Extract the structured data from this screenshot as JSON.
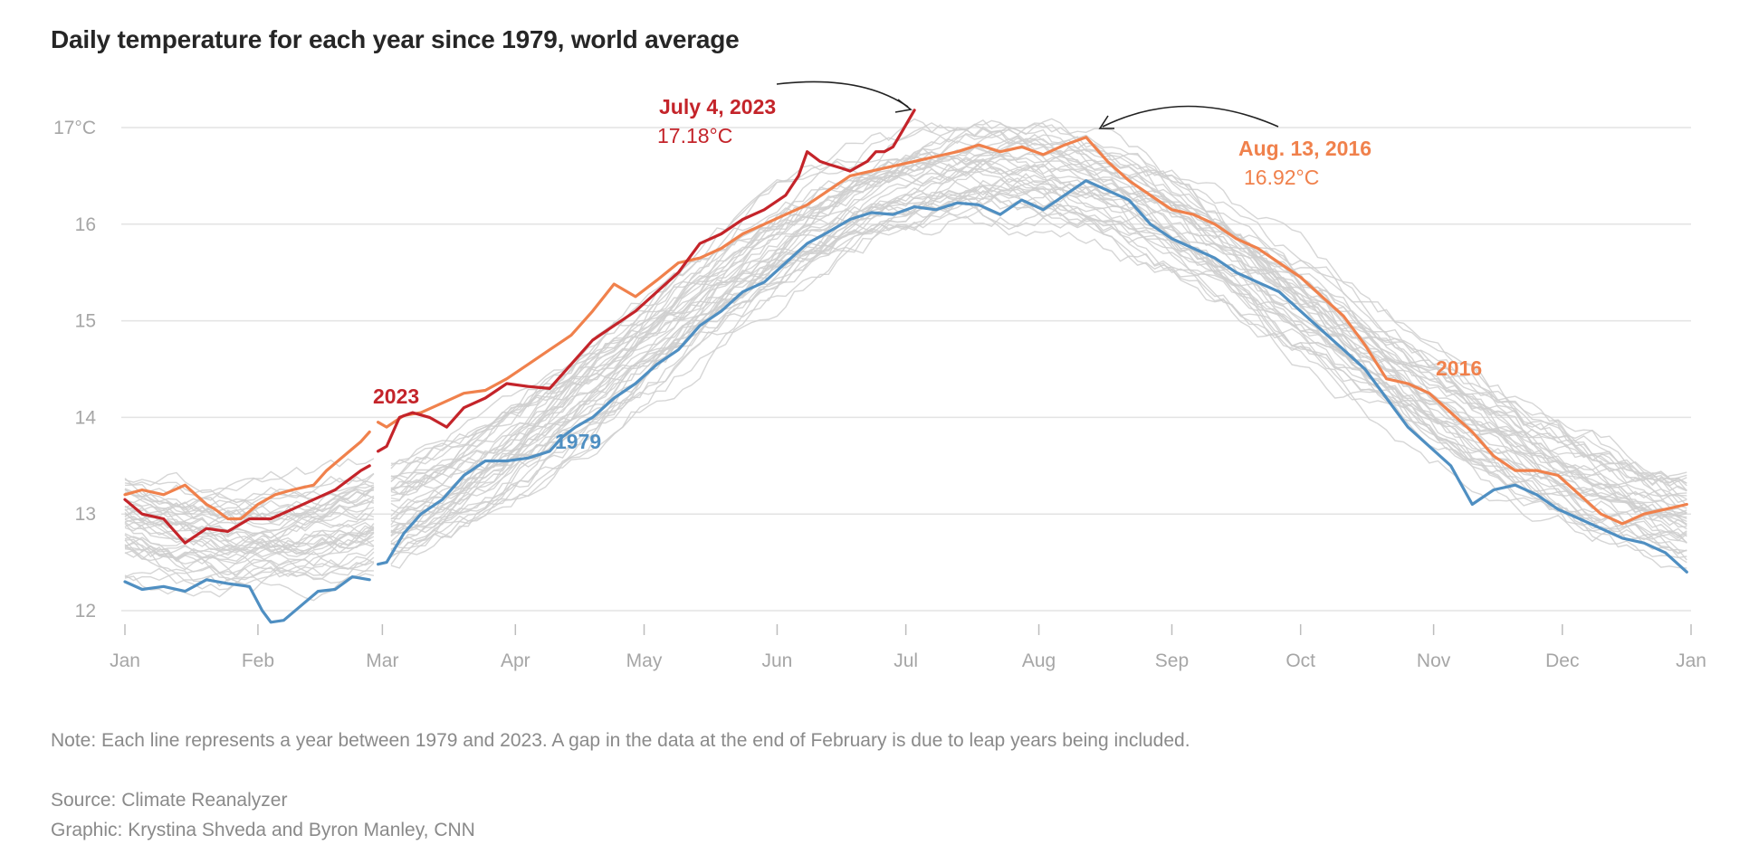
{
  "title": "Daily temperature for each year since 1979, world average",
  "chart_data": {
    "type": "line",
    "title": "Daily temperature for each year since 1979, world average",
    "xlabel": "",
    "ylabel": "",
    "x_range": [
      1,
      366
    ],
    "ylim": [
      12,
      17.3
    ],
    "y_ticks": [
      12,
      13,
      14,
      15,
      16,
      17
    ],
    "y_tick_labels": [
      "12",
      "13",
      "14",
      "15",
      "16",
      "17°C"
    ],
    "x_ticks": [
      {
        "day": 1,
        "label": "Jan"
      },
      {
        "day": 32,
        "label": "Feb"
      },
      {
        "day": 61,
        "label": "Mar"
      },
      {
        "day": 92,
        "label": "Apr"
      },
      {
        "day": 122,
        "label": "May"
      },
      {
        "day": 153,
        "label": "Jun"
      },
      {
        "day": 183,
        "label": "Jul"
      },
      {
        "day": 214,
        "label": "Aug"
      },
      {
        "day": 245,
        "label": "Sep"
      },
      {
        "day": 275,
        "label": "Oct"
      },
      {
        "day": 306,
        "label": "Nov"
      },
      {
        "day": 336,
        "label": "Dec"
      },
      {
        "day": 366,
        "label": "Jan"
      }
    ],
    "grid": true,
    "background_series_count": 42,
    "background_color": "#cfcfcf",
    "leap_gap_after_day": 59,
    "series": [
      {
        "name": "1979",
        "color": "#4f8fc2",
        "x": [
          1,
          5,
          10,
          15,
          20,
          25,
          30,
          33,
          35,
          38,
          42,
          46,
          50,
          54,
          58,
          60,
          62,
          66,
          70,
          75,
          80,
          85,
          90,
          95,
          100,
          103,
          106,
          110,
          115,
          120,
          125,
          130,
          135,
          140,
          145,
          150,
          155,
          160,
          165,
          170,
          175,
          180,
          185,
          190,
          195,
          200,
          205,
          210,
          215,
          220,
          225,
          230,
          235,
          240,
          245,
          250,
          255,
          260,
          265,
          270,
          275,
          280,
          285,
          290,
          295,
          300,
          305,
          310,
          315,
          320,
          325,
          330,
          335,
          340,
          345,
          350,
          355,
          360,
          365
        ],
        "values": [
          12.3,
          12.22,
          12.25,
          12.2,
          12.32,
          12.28,
          12.25,
          12.0,
          11.88,
          11.9,
          12.05,
          12.2,
          12.22,
          12.35,
          12.32,
          12.48,
          12.5,
          12.8,
          13.0,
          13.15,
          13.4,
          13.55,
          13.55,
          13.58,
          13.65,
          13.8,
          13.9,
          14.0,
          14.2,
          14.35,
          14.55,
          14.7,
          14.95,
          15.1,
          15.3,
          15.4,
          15.6,
          15.8,
          15.92,
          16.05,
          16.12,
          16.1,
          16.18,
          16.15,
          16.22,
          16.2,
          16.1,
          16.25,
          16.15,
          16.3,
          16.45,
          16.35,
          16.25,
          16.0,
          15.85,
          15.75,
          15.65,
          15.5,
          15.4,
          15.3,
          15.1,
          14.9,
          14.7,
          14.5,
          14.2,
          13.9,
          13.7,
          13.5,
          13.1,
          13.25,
          13.3,
          13.2,
          13.05,
          12.95,
          12.85,
          12.75,
          12.7,
          12.6,
          12.4
        ]
      },
      {
        "name": "2016",
        "color": "#f0814c",
        "x": [
          1,
          5,
          10,
          15,
          20,
          22,
          25,
          28,
          32,
          36,
          40,
          45,
          48,
          52,
          56,
          58,
          60,
          62,
          66,
          70,
          75,
          80,
          85,
          90,
          95,
          100,
          105,
          110,
          115,
          120,
          125,
          130,
          135,
          140,
          145,
          150,
          155,
          160,
          165,
          170,
          175,
          180,
          185,
          190,
          195,
          200,
          205,
          210,
          215,
          220,
          225,
          230,
          235,
          240,
          245,
          250,
          255,
          260,
          265,
          270,
          275,
          280,
          285,
          290,
          295,
          300,
          305,
          310,
          315,
          320,
          325,
          330,
          335,
          340,
          345,
          350,
          355,
          360,
          365
        ],
        "values": [
          13.2,
          13.25,
          13.2,
          13.3,
          13.1,
          13.05,
          12.95,
          12.95,
          13.1,
          13.2,
          13.25,
          13.3,
          13.45,
          13.6,
          13.75,
          13.85,
          13.95,
          13.9,
          14.02,
          14.05,
          14.15,
          14.25,
          14.28,
          14.4,
          14.55,
          14.7,
          14.85,
          15.1,
          15.38,
          15.25,
          15.42,
          15.6,
          15.65,
          15.75,
          15.9,
          16.0,
          16.1,
          16.2,
          16.35,
          16.5,
          16.55,
          16.6,
          16.65,
          16.7,
          16.75,
          16.82,
          16.75,
          16.8,
          16.72,
          16.82,
          16.9,
          16.65,
          16.45,
          16.3,
          16.15,
          16.1,
          16.0,
          15.85,
          15.75,
          15.6,
          15.45,
          15.25,
          15.05,
          14.75,
          14.4,
          14.35,
          14.25,
          14.05,
          13.85,
          13.6,
          13.45,
          13.45,
          13.4,
          13.2,
          13.0,
          12.9,
          13.0,
          13.05,
          13.1
        ]
      },
      {
        "name": "2023",
        "color": "#c4242a",
        "x": [
          1,
          5,
          10,
          15,
          20,
          25,
          30,
          35,
          40,
          45,
          50,
          53,
          56,
          58,
          60,
          62,
          65,
          68,
          72,
          76,
          80,
          85,
          90,
          95,
          100,
          105,
          110,
          115,
          120,
          125,
          130,
          135,
          140,
          145,
          150,
          155,
          158,
          160,
          163,
          165,
          168,
          170,
          172,
          174,
          176,
          178,
          180,
          182,
          185
        ],
        "values": [
          13.15,
          13.0,
          12.95,
          12.7,
          12.85,
          12.82,
          12.95,
          12.95,
          13.05,
          13.15,
          13.25,
          13.35,
          13.45,
          13.5,
          13.65,
          13.7,
          14.0,
          14.05,
          14.0,
          13.9,
          14.1,
          14.2,
          14.35,
          14.32,
          14.3,
          14.55,
          14.8,
          14.95,
          15.1,
          15.3,
          15.5,
          15.8,
          15.9,
          16.05,
          16.15,
          16.3,
          16.5,
          16.75,
          16.65,
          16.62,
          16.58,
          16.55,
          16.6,
          16.65,
          16.75,
          16.75,
          16.8,
          16.95,
          17.18
        ]
      }
    ],
    "annotations": [
      {
        "label": "July 4, 2023",
        "value_label": "17.18°C",
        "day": 185,
        "value": 17.18
      },
      {
        "label": "Aug. 13, 2016",
        "value_label": "16.92°C",
        "day": 225,
        "value": 16.92
      },
      {
        "label": "2023"
      },
      {
        "label": "1979"
      },
      {
        "label": "2016"
      }
    ]
  },
  "footnotes": {
    "note": "Note: Each line represents a year between 1979 and 2023. A gap in the data at the end of February is due to leap years being included.",
    "source": "Source: Climate Reanalyzer",
    "graphic": "Graphic: Krystina Shveda and Byron Manley, CNN"
  }
}
